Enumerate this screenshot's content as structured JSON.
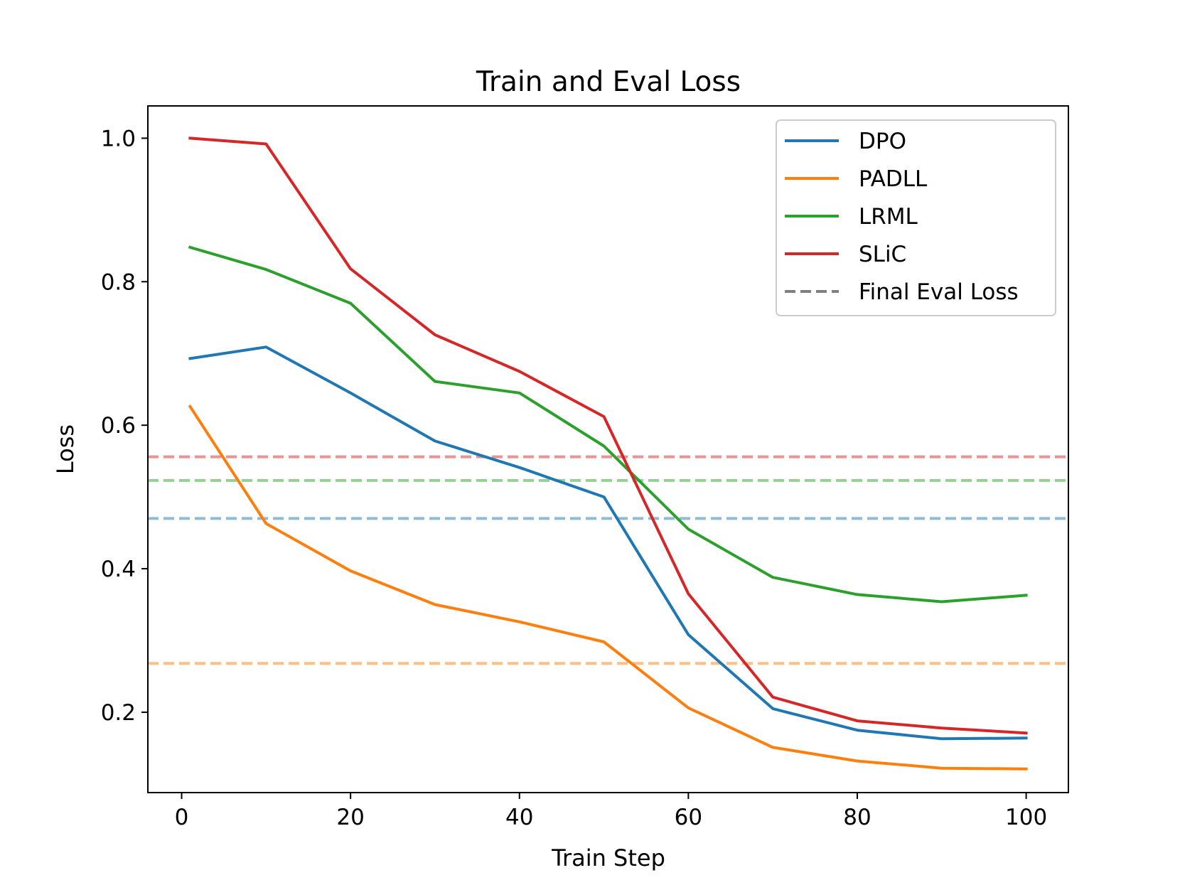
{
  "chart_data": {
    "type": "line",
    "title": "Train and Eval Loss",
    "xlabel": "Train Step",
    "ylabel": "Loss",
    "xlim": [
      -4,
      105
    ],
    "ylim": [
      0.088,
      1.045
    ],
    "x_ticks": [
      {
        "value": 0,
        "label": "0"
      },
      {
        "value": 20,
        "label": "20"
      },
      {
        "value": 40,
        "label": "40"
      },
      {
        "value": 60,
        "label": "60"
      },
      {
        "value": 80,
        "label": "80"
      },
      {
        "value": 100,
        "label": "100"
      }
    ],
    "y_ticks": [
      {
        "value": 0.2,
        "label": "0.2"
      },
      {
        "value": 0.4,
        "label": "0.4"
      },
      {
        "value": 0.6,
        "label": "0.6"
      },
      {
        "value": 0.8,
        "label": "0.8"
      },
      {
        "value": 1.0,
        "label": "1.0"
      }
    ],
    "grid": false,
    "legend_position": "top-right",
    "x": [
      1,
      10,
      20,
      30,
      40,
      50,
      60,
      70,
      80,
      90,
      100
    ],
    "series": [
      {
        "name": "DPO",
        "color": "#1f77b4",
        "values": [
          0.693,
          0.709,
          0.645,
          0.578,
          0.541,
          0.5,
          0.308,
          0.205,
          0.175,
          0.163,
          0.164
        ]
      },
      {
        "name": "PADLL",
        "color": "#ff7f0e",
        "values": [
          0.626,
          0.463,
          0.397,
          0.35,
          0.326,
          0.298,
          0.206,
          0.151,
          0.132,
          0.122,
          0.121
        ]
      },
      {
        "name": "LRML",
        "color": "#2ca02c",
        "values": [
          0.848,
          0.817,
          0.77,
          0.661,
          0.645,
          0.571,
          0.455,
          0.388,
          0.364,
          0.354,
          0.363
        ]
      },
      {
        "name": "SLiC",
        "color": "#d62728",
        "values": [
          1.0,
          0.992,
          0.818,
          0.726,
          0.675,
          0.612,
          0.365,
          0.221,
          0.188,
          0.178,
          0.171
        ]
      }
    ],
    "eval_lines": [
      {
        "series": "DPO",
        "color": "#1f77b4",
        "value": 0.47
      },
      {
        "series": "PADLL",
        "color": "#ff7f0e",
        "value": 0.268
      },
      {
        "series": "LRML",
        "color": "#2ca02c",
        "value": 0.523
      },
      {
        "series": "SLiC",
        "color": "#d62728",
        "value": 0.556
      }
    ],
    "legend": [
      {
        "label": "DPO",
        "color": "#1f77b4",
        "style": "solid"
      },
      {
        "label": "PADLL",
        "color": "#ff7f0e",
        "style": "solid"
      },
      {
        "label": "LRML",
        "color": "#2ca02c",
        "style": "solid"
      },
      {
        "label": "SLiC",
        "color": "#d62728",
        "style": "solid"
      },
      {
        "label": "Final Eval Loss",
        "color": "#808080",
        "style": "dashed"
      }
    ]
  }
}
